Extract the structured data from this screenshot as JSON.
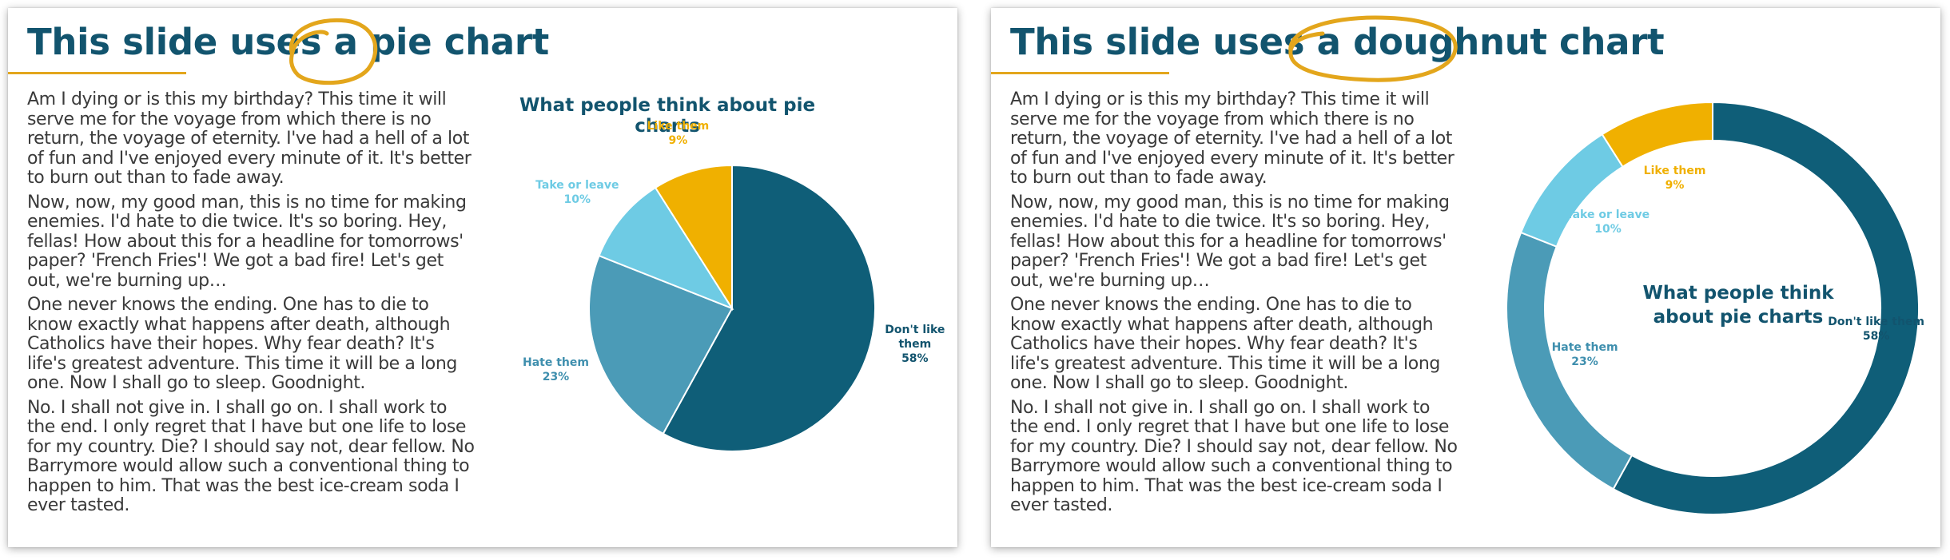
{
  "colors": {
    "accent": "#e3a61c",
    "title": "#12546e",
    "body_text": "#3a3a3a",
    "series": [
      "#0f5e78",
      "#4b9bb7",
      "#6ecbe4",
      "#f0b000"
    ]
  },
  "slides": [
    {
      "title": "This slide uses a pie chart",
      "body_paragraphs": [
        "Am I dying or is this my birthday? This time it will serve me for the voyage from which there is no return, the voyage of eternity. I've had a hell of a lot of fun and I've enjoyed every minute of it. It's better to burn out than to fade away.",
        "Now, now, my good man, this is no time for making enemies. I'd hate to die twice. It's so boring. Hey, fellas! How about this for a headline for tomorrows' paper? 'French Fries'! We got a bad fire! Let's get out, we're burning up…",
        "One never knows the ending. One has to die to know exactly what happens after death, although Catholics have their hopes. Why fear death? It's life's greatest adventure. This time it will be a long one. Now I shall go to sleep. Goodnight.",
        "No. I shall not give in. I shall go on. I shall work to the end. I only regret that I have but one life to lose for my country. Die? I should say not, dear fellow. No Barrymore would allow such a conventional thing to happen to him. That was the best ice-cream soda I ever tasted."
      ],
      "chart_data": {
        "type": "pie",
        "title": "What people think about pie charts",
        "categories": [
          "Don't like them",
          "Hate them",
          "Take or leave",
          "Like them"
        ],
        "values": [
          58,
          23,
          10,
          9
        ],
        "labels": [
          {
            "name": "Don't like them",
            "name_lines": [
              "Don't like",
              "them"
            ],
            "percent": "58%"
          },
          {
            "name": "Hate them",
            "name_lines": [
              "Hate them"
            ],
            "percent": "23%"
          },
          {
            "name": "Take or leave",
            "name_lines": [
              "Take or leave"
            ],
            "percent": "10%"
          },
          {
            "name": "Like them",
            "name_lines": [
              "Like them"
            ],
            "percent": "9%"
          }
        ],
        "start": "12 o'clock, clockwise",
        "legend": "none, data labels outside"
      }
    },
    {
      "title": "This slide uses a doughnut chart",
      "body_paragraphs": [
        "Am I dying or is this my birthday? This time it will serve me for the voyage from which there is no return, the voyage of eternity. I've had a hell of a lot of fun and I've enjoyed every minute of it. It's better to burn out than to fade away.",
        "Now, now, my good man, this is no time for making enemies. I'd hate to die twice. It's so boring. Hey, fellas! How about this for a headline for tomorrows' paper? 'French Fries'! We got a bad fire! Let's get out, we're burning up…",
        "One never knows the ending. One has to die to know exactly what happens after death, although Catholics have their hopes. Why fear death? It's life's greatest adventure. This time it will be a long one. Now I shall go to sleep. Goodnight.",
        "No. I shall not give in. I shall go on. I shall work to the end. I only regret that I have but one life to lose for my country. Die? I should say not, dear fellow. No Barrymore would allow such a conventional thing to happen to him. That was the best ice-cream soda I ever tasted."
      ],
      "chart_data": {
        "type": "doughnut",
        "title": "What people think about pie charts",
        "title_lines": [
          "What people think",
          "about pie charts"
        ],
        "categories": [
          "Don't like them",
          "Hate them",
          "Take or leave",
          "Like them"
        ],
        "values": [
          58,
          23,
          10,
          9
        ],
        "labels": [
          {
            "name": "Don't like them",
            "name_lines": [
              "Don't like them"
            ],
            "percent": "58%"
          },
          {
            "name": "Hate them",
            "name_lines": [
              "Hate them"
            ],
            "percent": "23%"
          },
          {
            "name": "Take or leave",
            "name_lines": [
              "Take or leave"
            ],
            "percent": "10%"
          },
          {
            "name": "Like them",
            "name_lines": [
              "Like them"
            ],
            "percent": "9%"
          }
        ],
        "start": "12 o'clock, clockwise",
        "legend": "none, data labels inside"
      }
    }
  ]
}
